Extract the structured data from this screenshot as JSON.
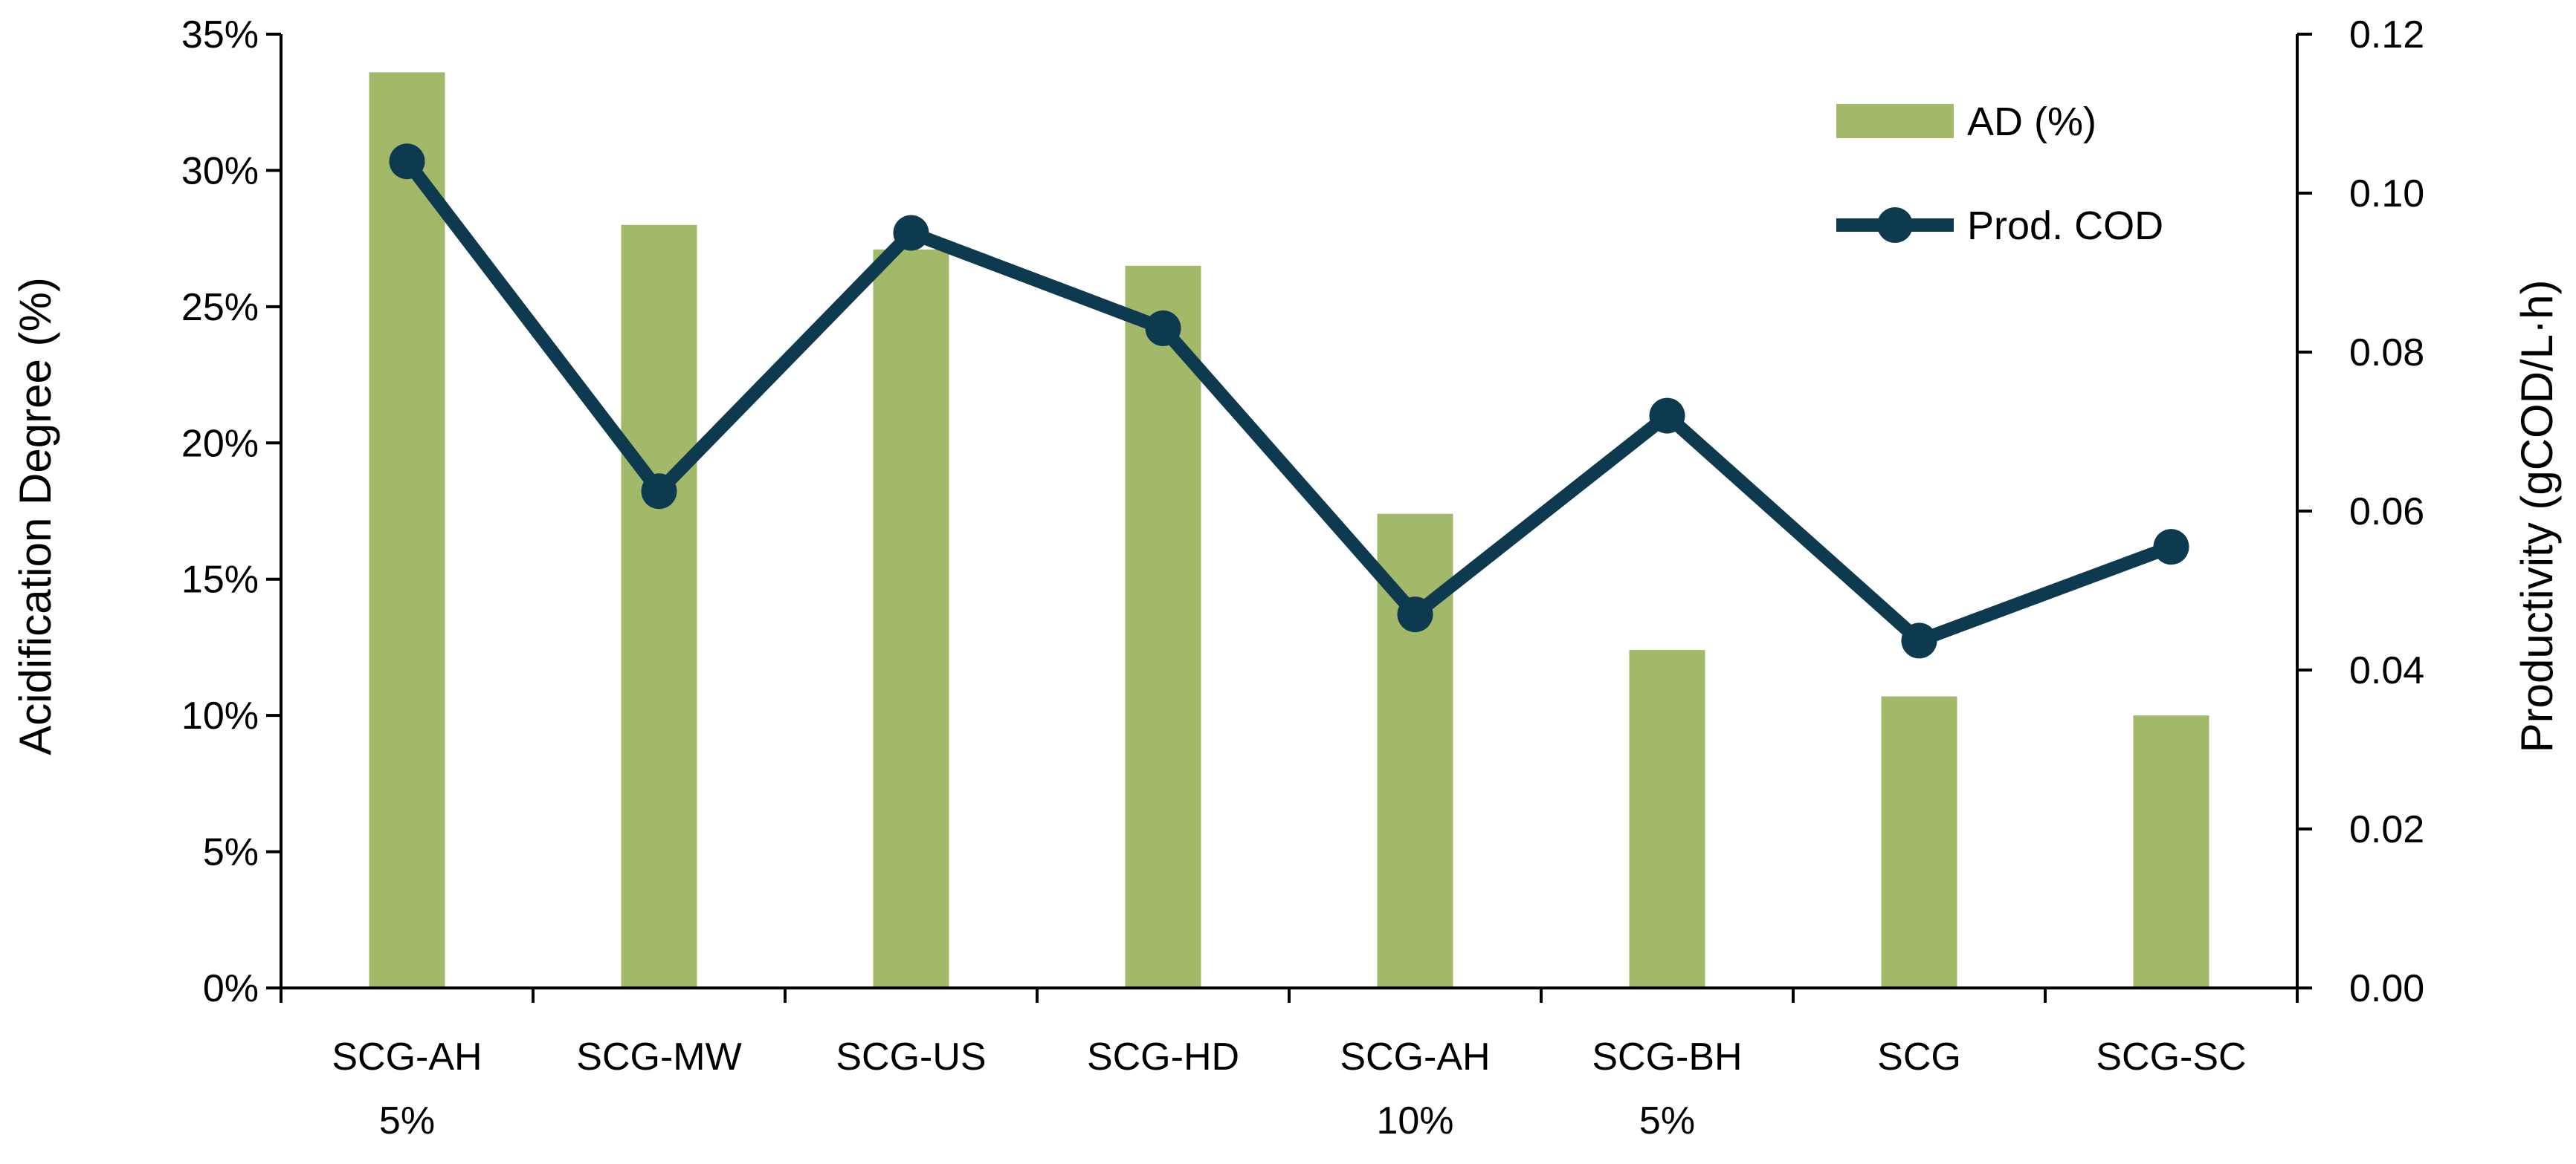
{
  "chart_data": {
    "type": "bar+line",
    "title": "",
    "categories": [
      [
        "SCG-AH",
        "5%"
      ],
      [
        "SCG-MW"
      ],
      [
        "SCG-US"
      ],
      [
        "SCG-HD"
      ],
      [
        "SCG-AH",
        "10%"
      ],
      [
        "SCG-BH",
        "5%"
      ],
      [
        "SCG"
      ],
      [
        "SCG-SC"
      ]
    ],
    "series": [
      {
        "name": "AD (%)",
        "kind": "bar",
        "axis": "left",
        "color": "#a3b96a",
        "values": [
          33.6,
          28.0,
          27.1,
          26.5,
          17.4,
          12.4,
          10.7,
          10.0
        ]
      },
      {
        "name": "Prod. COD",
        "kind": "line",
        "axis": "right",
        "color": "#0e3a4f",
        "values": [
          0.104,
          0.0625,
          0.095,
          0.083,
          0.047,
          0.072,
          0.0437,
          0.0555
        ]
      }
    ],
    "ylabel": "Acidification Degree (%)",
    "y2label": "Productivity (gCOD/L·h)",
    "ylim": [
      0,
      35
    ],
    "y2lim": [
      0,
      0.12
    ],
    "yticks": [
      "0%",
      "5%",
      "10%",
      "15%",
      "20%",
      "25%",
      "30%",
      "35%"
    ],
    "y2ticks": [
      "0.00",
      "0.02",
      "0.04",
      "0.06",
      "0.08",
      "0.10",
      "0.12"
    ],
    "legend_position": "top-right",
    "grid": false
  }
}
